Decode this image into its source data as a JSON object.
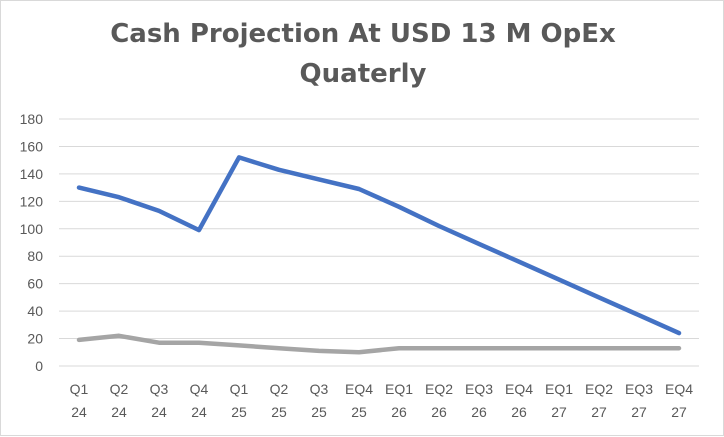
{
  "chart_data": {
    "type": "line",
    "title_lines": [
      "Cash Projection At USD 13 M OpEx",
      "Quaterly"
    ],
    "categories": [
      [
        "Q1",
        "24"
      ],
      [
        "Q2",
        "24"
      ],
      [
        "Q3",
        "24"
      ],
      [
        "Q4",
        "24"
      ],
      [
        "Q1",
        "25"
      ],
      [
        "Q2",
        "25"
      ],
      [
        "Q3",
        "25"
      ],
      [
        "EQ4",
        "25"
      ],
      [
        "EQ1",
        "26"
      ],
      [
        "EQ2",
        "26"
      ],
      [
        "EQ3",
        "26"
      ],
      [
        "EQ4",
        "26"
      ],
      [
        "EQ1",
        "27"
      ],
      [
        "EQ2",
        "27"
      ],
      [
        "EQ3",
        "27"
      ],
      [
        "EQ4",
        "27"
      ]
    ],
    "series": [
      {
        "color": "#4472c4",
        "values": [
          130,
          123,
          113,
          99,
          152,
          143,
          136,
          129,
          116,
          102,
          89,
          76,
          63,
          50,
          37,
          24
        ]
      },
      {
        "color": "#a5a5a5",
        "values": [
          19,
          22,
          17,
          17,
          15,
          13,
          11,
          10,
          13,
          13,
          13,
          13,
          13,
          13,
          13,
          13
        ]
      }
    ],
    "yticks": [
      0,
      20,
      40,
      60,
      80,
      100,
      120,
      140,
      160,
      180
    ],
    "ylim": [
      0,
      180
    ],
    "grid": true,
    "legend": "none"
  }
}
